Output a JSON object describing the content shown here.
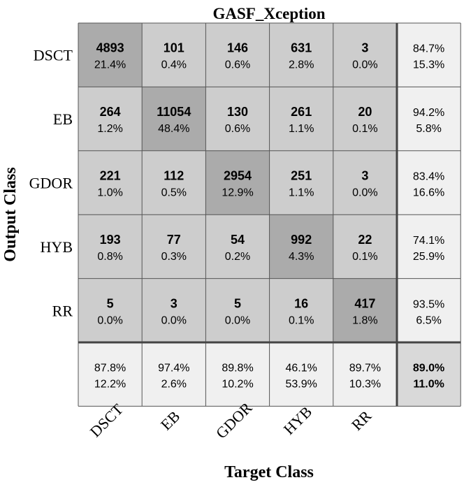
{
  "chart_data": {
    "type": "heatmap",
    "title": "GASF_Xception",
    "xlabel": "Target Class",
    "ylabel": "Output Class",
    "classes": [
      "DSCT",
      "EB",
      "GDOR",
      "HYB",
      "RR"
    ],
    "counts": [
      [
        4893,
        101,
        146,
        631,
        3
      ],
      [
        264,
        11054,
        130,
        261,
        20
      ],
      [
        221,
        112,
        2954,
        251,
        3
      ],
      [
        193,
        77,
        54,
        992,
        22
      ],
      [
        5,
        3,
        5,
        16,
        417
      ]
    ],
    "cell_percents": [
      [
        "21.4%",
        "0.4%",
        "0.6%",
        "2.8%",
        "0.0%"
      ],
      [
        "1.2%",
        "48.4%",
        "0.6%",
        "1.1%",
        "0.1%"
      ],
      [
        "1.0%",
        "0.5%",
        "12.9%",
        "1.1%",
        "0.0%"
      ],
      [
        "0.8%",
        "0.3%",
        "0.2%",
        "4.3%",
        "0.1%"
      ],
      [
        "0.0%",
        "0.0%",
        "0.0%",
        "0.1%",
        "1.8%"
      ]
    ],
    "row_summary": [
      [
        "84.7%",
        "15.3%"
      ],
      [
        "94.2%",
        "5.8%"
      ],
      [
        "83.4%",
        "16.6%"
      ],
      [
        "74.1%",
        "25.9%"
      ],
      [
        "93.5%",
        "6.5%"
      ]
    ],
    "col_summary": [
      [
        "87.8%",
        "12.2%"
      ],
      [
        "97.4%",
        "2.6%"
      ],
      [
        "89.8%",
        "10.2%"
      ],
      [
        "46.1%",
        "53.9%"
      ],
      [
        "89.7%",
        "10.3%"
      ]
    ],
    "overall": [
      "89.0%",
      "11.0%"
    ],
    "colors": {
      "diagonal": "#ababab",
      "off_diagonal": "#cdcdcd",
      "summary": "#f0f0f0",
      "overall": "#d9d9d9",
      "grid": "#555555",
      "separator": "#444444"
    }
  }
}
